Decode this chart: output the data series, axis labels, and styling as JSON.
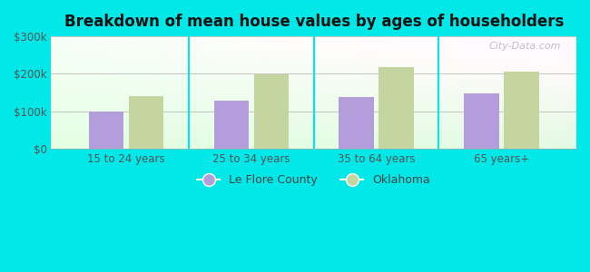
{
  "title": "Breakdown of mean house values by ages of householders",
  "categories": [
    "15 to 24 years",
    "25 to 34 years",
    "35 to 64 years",
    "65 years+"
  ],
  "le_flore": [
    100000,
    128000,
    138000,
    148000
  ],
  "oklahoma": [
    140000,
    198000,
    218000,
    207000
  ],
  "le_flore_color": "#b39ddb",
  "oklahoma_color": "#c5d5a0",
  "background_color": "#00e8e8",
  "ylim": [
    0,
    300000
  ],
  "yticks": [
    0,
    100000,
    200000,
    300000
  ],
  "ytick_labels": [
    "$0",
    "$100k",
    "$200k",
    "$300k"
  ],
  "legend_labels": [
    "Le Flore County",
    "Oklahoma"
  ],
  "watermark": "City-Data.com",
  "bar_width": 0.28
}
